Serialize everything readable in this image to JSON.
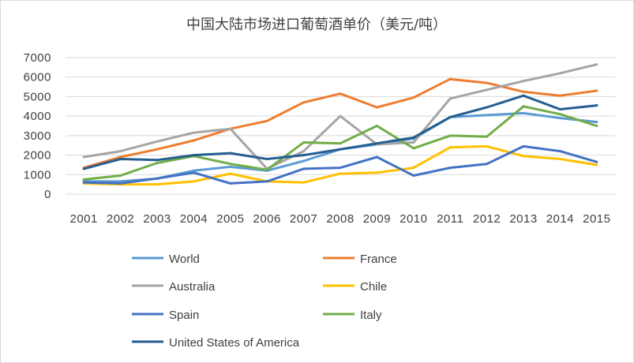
{
  "chart_data": {
    "type": "line",
    "title": "中国大陆市场进口葡萄酒单价（美元/吨）",
    "xlabel": "",
    "ylabel": "",
    "categories": [
      "2001",
      "2002",
      "2003",
      "2004",
      "2005",
      "2006",
      "2007",
      "2008",
      "2009",
      "2010",
      "2011",
      "2012",
      "2013",
      "2014",
      "2015"
    ],
    "ylim": [
      0,
      7000
    ],
    "yticks": [
      "0",
      "1000",
      "2000",
      "3000",
      "4000",
      "5000",
      "6000",
      "7000"
    ],
    "grid": true,
    "legend_position": "bottom",
    "series": [
      {
        "name": "World",
        "color": "#5b9bd5",
        "values": [
          650,
          650,
          800,
          1200,
          1400,
          1200,
          1700,
          2300,
          2550,
          2850,
          3950,
          4050,
          4150,
          3900,
          3700
        ]
      },
      {
        "name": "France",
        "color": "#ed7d31",
        "values": [
          1350,
          1900,
          2300,
          2750,
          3350,
          3750,
          4700,
          5150,
          4450,
          4950,
          5900,
          5700,
          5250,
          5050,
          5300
        ]
      },
      {
        "name": "Australia",
        "color": "#a5a5a5",
        "values": [
          1900,
          2200,
          2700,
          3150,
          3350,
          1300,
          2200,
          4000,
          2550,
          2650,
          4900,
          5350,
          5800,
          6200,
          6650
        ]
      },
      {
        "name": "Chile",
        "color": "#ffc000",
        "values": [
          550,
          500,
          500,
          650,
          1050,
          650,
          600,
          1050,
          1100,
          1350,
          2400,
          2450,
          1950,
          1800,
          1500
        ]
      },
      {
        "name": "Spain",
        "color": "#4472c4",
        "values": [
          600,
          550,
          800,
          1100,
          550,
          650,
          1300,
          1350,
          1900,
          950,
          1350,
          1550,
          2450,
          2200,
          1650
        ]
      },
      {
        "name": "Italy",
        "color": "#70ad47",
        "values": [
          750,
          950,
          1600,
          1950,
          1550,
          1250,
          2650,
          2600,
          3500,
          2350,
          3000,
          2950,
          4500,
          4100,
          3500
        ]
      },
      {
        "name": "United States of America",
        "color": "#255e91",
        "values": [
          1300,
          1800,
          1750,
          2000,
          2100,
          1800,
          2000,
          2300,
          2600,
          2900,
          3950,
          4450,
          5050,
          4350,
          4550
        ]
      }
    ]
  }
}
